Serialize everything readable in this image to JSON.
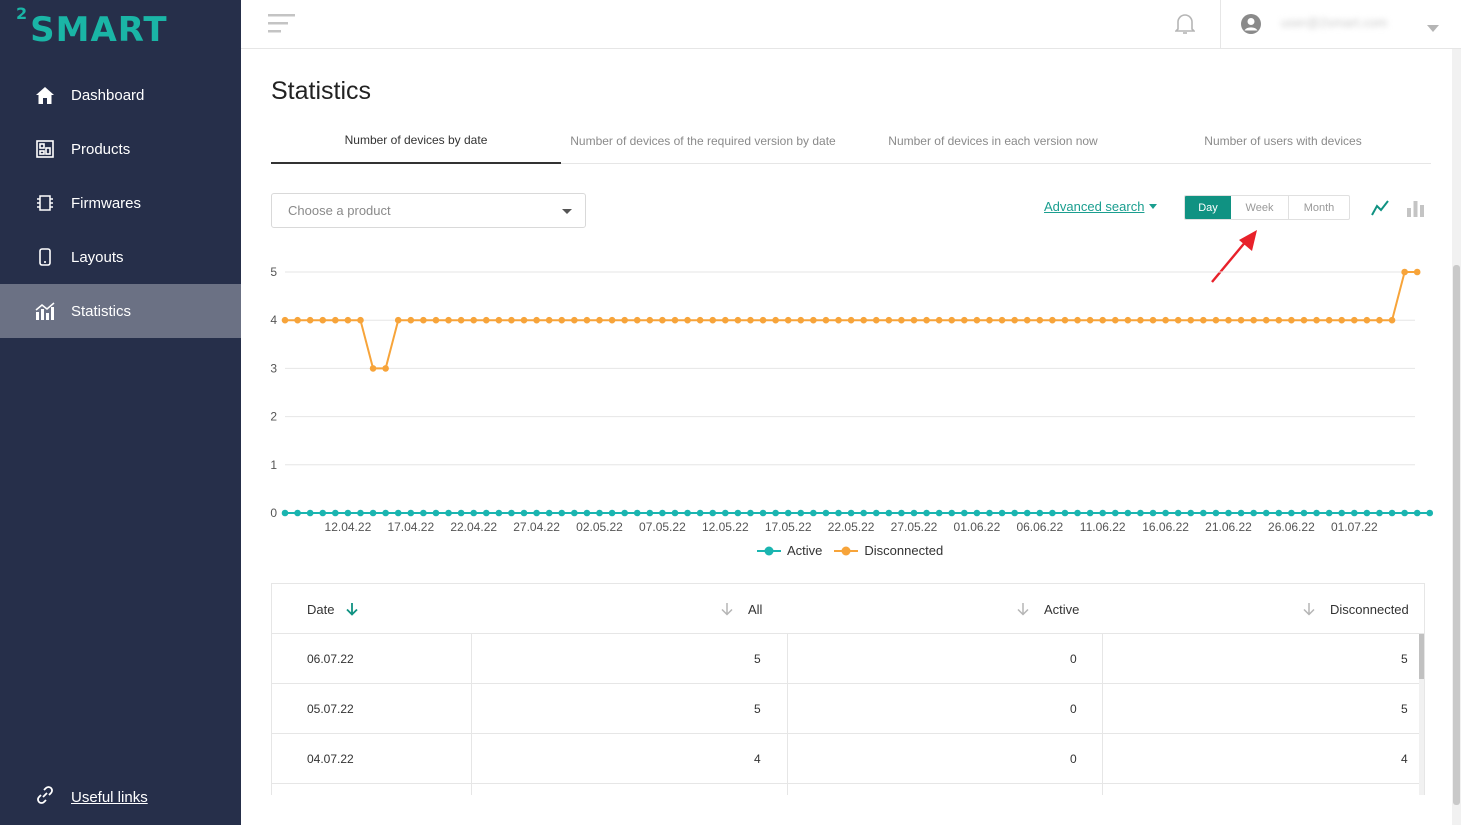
{
  "brand": {
    "logo_sup": "2",
    "logo_text": "SMART"
  },
  "sidebar": {
    "items": [
      {
        "label": "Dashboard",
        "icon": "home-icon"
      },
      {
        "label": "Products",
        "icon": "products-icon"
      },
      {
        "label": "Firmwares",
        "icon": "chip-icon"
      },
      {
        "label": "Layouts",
        "icon": "phone-icon"
      },
      {
        "label": "Statistics",
        "icon": "statistics-icon",
        "active": true
      }
    ],
    "useful_links": "Useful links"
  },
  "topbar": {
    "user_email": "user@2smart.com"
  },
  "page": {
    "title": "Statistics",
    "tabs": [
      "Number of devices by date",
      "Number of devices of the required version by date",
      "Number of devices in each version now",
      "Number of users with devices"
    ]
  },
  "filters": {
    "product_placeholder": "Choose a product",
    "advanced_search": "Advanced search",
    "periods": [
      "Day",
      "Week",
      "Month"
    ],
    "active_period": "Day"
  },
  "colors": {
    "accent": "#109282",
    "active_series": "#1ab5b0",
    "disconnected_series": "#f7a43a",
    "sidebar_bg": "#262f4a"
  },
  "chart_data": {
    "type": "line",
    "x_tick_labels": [
      "12.04.22",
      "17.04.22",
      "22.04.22",
      "27.04.22",
      "02.05.22",
      "07.05.22",
      "12.05.22",
      "17.05.22",
      "22.05.22",
      "27.05.22",
      "01.06.22",
      "06.06.22",
      "11.06.22",
      "16.06.22",
      "21.06.22",
      "26.06.22",
      "01.07.22"
    ],
    "ylim": [
      0,
      5
    ],
    "yticks": [
      0,
      1,
      2,
      3,
      4,
      5
    ],
    "grid": true,
    "legend_position": "bottom",
    "series": [
      {
        "name": "Active",
        "color": "#1ab5b0",
        "values": [
          0,
          0,
          0,
          0,
          0,
          0,
          0,
          0,
          0,
          0,
          0,
          0,
          0,
          0,
          0,
          0,
          0,
          0,
          0,
          0,
          0,
          0,
          0,
          0,
          0,
          0,
          0,
          0,
          0,
          0,
          0,
          0,
          0,
          0,
          0,
          0,
          0,
          0,
          0,
          0,
          0,
          0,
          0,
          0,
          0,
          0,
          0,
          0,
          0,
          0,
          0,
          0,
          0,
          0,
          0,
          0,
          0,
          0,
          0,
          0,
          0,
          0,
          0,
          0,
          0,
          0,
          0,
          0,
          0,
          0,
          0,
          0,
          0,
          0,
          0,
          0,
          0,
          0,
          0,
          0,
          0,
          0,
          0,
          0,
          0,
          0,
          0,
          0,
          0,
          0,
          0,
          0
        ]
      },
      {
        "name": "Disconnected",
        "color": "#f7a43a",
        "values": [
          4,
          4,
          4,
          4,
          4,
          4,
          4,
          3,
          3,
          4,
          4,
          4,
          4,
          4,
          4,
          4,
          4,
          4,
          4,
          4,
          4,
          4,
          4,
          4,
          4,
          4,
          4,
          4,
          4,
          4,
          4,
          4,
          4,
          4,
          4,
          4,
          4,
          4,
          4,
          4,
          4,
          4,
          4,
          4,
          4,
          4,
          4,
          4,
          4,
          4,
          4,
          4,
          4,
          4,
          4,
          4,
          4,
          4,
          4,
          4,
          4,
          4,
          4,
          4,
          4,
          4,
          4,
          4,
          4,
          4,
          4,
          4,
          4,
          4,
          4,
          4,
          4,
          4,
          4,
          4,
          4,
          4,
          4,
          4,
          4,
          4,
          4,
          4,
          4,
          5,
          5
        ]
      }
    ]
  },
  "table": {
    "columns": [
      "Date",
      "All",
      "Active",
      "Disconnected"
    ],
    "rows": [
      {
        "date": "06.07.22",
        "all": "5",
        "active": "0",
        "disconnected": "5"
      },
      {
        "date": "05.07.22",
        "all": "5",
        "active": "0",
        "disconnected": "5"
      },
      {
        "date": "04.07.22",
        "all": "4",
        "active": "0",
        "disconnected": "4"
      }
    ]
  }
}
